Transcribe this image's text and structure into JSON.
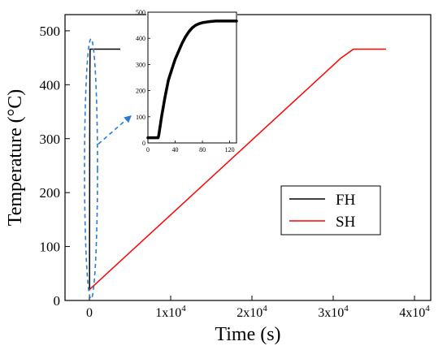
{
  "chart_data": [
    {
      "type": "line",
      "xlabel": "Time (s)",
      "ylabel": "Temperature (°C)",
      "xlim": [
        -3000,
        42000
      ],
      "ylim": [
        0,
        530
      ],
      "x_ticks": [
        {
          "value": 0,
          "label": "0"
        },
        {
          "value": 10000,
          "label": "1x10^4"
        },
        {
          "value": 20000,
          "label": "2x10^4"
        },
        {
          "value": 30000,
          "label": "3x10^4"
        },
        {
          "value": 40000,
          "label": "4x10^4"
        }
      ],
      "y_ticks": [
        0,
        100,
        200,
        300,
        400,
        500
      ],
      "legend": {
        "placement": "lower-right"
      },
      "series": [
        {
          "name": "FH",
          "color": "#000000",
          "x": [
            0,
            15,
            20,
            40,
            60,
            80,
            100,
            130,
            3800
          ],
          "y": [
            20,
            20,
            100,
            300,
            420,
            460,
            466,
            466,
            466
          ]
        },
        {
          "name": "SH",
          "color": "#ff0000",
          "x": [
            0,
            31000,
            32500,
            36500
          ],
          "y": [
            20,
            450,
            466,
            466
          ]
        }
      ],
      "highlight": {
        "shape": "dashed ellipse around the FH spike",
        "color": "#2b7bd6"
      }
    },
    {
      "type": "line",
      "role": "inset",
      "xlabel": "",
      "ylabel": "",
      "xlim": [
        0,
        130
      ],
      "ylim": [
        0,
        500
      ],
      "x_ticks": [
        0,
        40,
        80,
        120
      ],
      "y_ticks": [
        0,
        100,
        200,
        300,
        400,
        500
      ],
      "series": [
        {
          "color": "#000000",
          "x": [
            0,
            15,
            16,
            20,
            25,
            30,
            35,
            40,
            45,
            50,
            55,
            60,
            65,
            70,
            75,
            80,
            90,
            100,
            110,
            120,
            130
          ],
          "y": [
            20,
            20,
            30,
            100,
            175,
            240,
            280,
            320,
            350,
            380,
            405,
            425,
            440,
            450,
            456,
            460,
            464,
            466,
            466,
            466,
            466
          ]
        }
      ]
    }
  ]
}
